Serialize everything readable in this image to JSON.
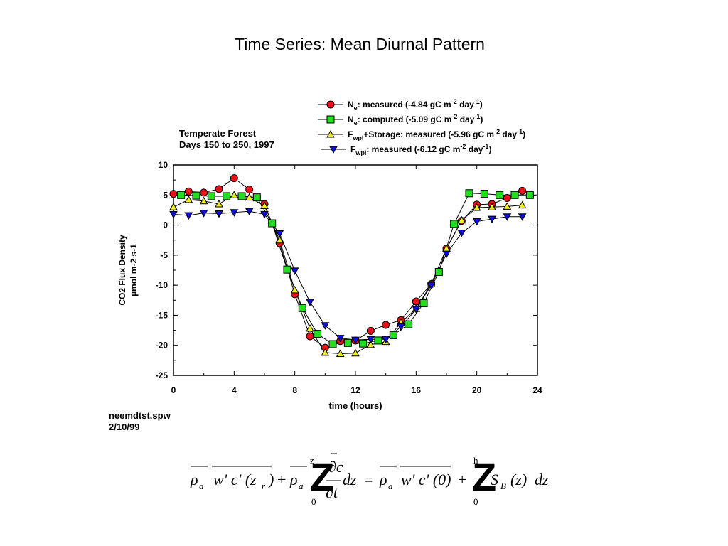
{
  "page": {
    "title": "Time Series: Mean Diurnal Pattern"
  },
  "notes": {
    "site": "Temperate Forest",
    "days": "Days 150 to 250, 1997",
    "file": "neemdtst.spw",
    "date": "2/10/99"
  },
  "chart_data": {
    "type": "line",
    "xlabel": "time (hours)",
    "ylabel_line1": "CO2 Flux Density",
    "ylabel_line2": "µmol m-2 s-1",
    "xlim": [
      0,
      24
    ],
    "ylim": [
      -25,
      10
    ],
    "xticks": [
      0,
      4,
      8,
      12,
      16,
      20,
      24
    ],
    "yticks": [
      10,
      5,
      0,
      -5,
      -10,
      -15,
      -20,
      -25
    ],
    "grid": false,
    "legend_position": "top-right",
    "series": [
      {
        "name": "Ne: measured (-4.84 gC m-2 day-1)",
        "legend": {
          "main": "N",
          "sub": "e",
          "text": ": measured (-4.84 gC m",
          "sup1": "-2",
          "mid": " day",
          "sup2": "-1",
          "end": ")"
        },
        "marker": "circle",
        "color": "#e8101a",
        "x": [
          0,
          1,
          2,
          3,
          4,
          5,
          6,
          7,
          8,
          9,
          10,
          11,
          12,
          13,
          14,
          15,
          16,
          17,
          18,
          19,
          20,
          21,
          22,
          23
        ],
        "y": [
          5.2,
          5.6,
          5.4,
          6.0,
          7.8,
          5.9,
          3.5,
          -3.0,
          -11.5,
          -18.5,
          -20.4,
          -19.3,
          -19.2,
          -17.6,
          -16.6,
          -15.8,
          -12.7,
          -9.8,
          -3.9,
          0.7,
          3.4,
          3.5,
          4.5,
          5.7
        ]
      },
      {
        "name": "Ne: computed (-5.09 gC m-2 day-1)",
        "legend": {
          "main": "N",
          "sub": "e",
          "text": ": computed (-5.09 gC m",
          "sup1": "-2",
          "mid": " day",
          "sup2": "-1",
          "end": ")"
        },
        "marker": "square",
        "color": "#22dd22",
        "x": [
          0.5,
          1.5,
          2.5,
          3.5,
          4.5,
          5.5,
          6.5,
          7.5,
          8.5,
          9.5,
          10.5,
          11.5,
          12.5,
          13.5,
          14.5,
          15.5,
          16.5,
          17.5,
          18.5,
          19.5,
          20.5,
          21.5,
          22.5,
          23.5
        ],
        "y": [
          5.0,
          4.9,
          4.8,
          4.8,
          4.8,
          4.6,
          0.3,
          -7.4,
          -13.8,
          -18.1,
          -19.8,
          -19.6,
          -19.7,
          -19.2,
          -18.3,
          -16.5,
          -13.0,
          -7.8,
          0.2,
          5.3,
          5.2,
          5.0,
          5.0,
          5.0
        ]
      },
      {
        "name": "Fwpl+Storage: measured (-5.96 gC m-2 day-1)",
        "legend": {
          "main": "F",
          "sub": "wpl",
          "text": "+Storage: measured (-5.96 gC m",
          "sup1": "-2",
          "mid": " day",
          "sup2": "-1",
          "end": ")"
        },
        "marker": "triangle-up",
        "color": "#eeee22",
        "x": [
          0,
          1,
          2,
          3,
          4,
          5,
          6,
          7,
          8,
          9,
          10,
          11,
          12,
          13,
          14,
          15,
          16,
          17,
          18,
          19,
          20,
          21,
          22,
          23
        ],
        "y": [
          3.0,
          4.2,
          4.0,
          3.5,
          5.0,
          4.6,
          3.2,
          -2.5,
          -10.8,
          -17.2,
          -21.2,
          -21.4,
          -21.3,
          -19.9,
          -19.4,
          -16.2,
          -13.9,
          -9.8,
          -3.9,
          0.8,
          2.9,
          3.0,
          3.1,
          3.3
        ]
      },
      {
        "name": "Fwpl: measured (-6.12 gC m-2 day-1)",
        "legend": {
          "main": "F",
          "sub": "wpl",
          "text": ": measured (-6.12 gC m",
          "sup1": "-2",
          "mid": " day",
          "sup2": "-1",
          "end": ")"
        },
        "marker": "triangle-down",
        "color": "#1010dd",
        "x": [
          0,
          1,
          2,
          3,
          4,
          5,
          6,
          7,
          8,
          9,
          10,
          11,
          12,
          13,
          14,
          15,
          16,
          17,
          18,
          19,
          20,
          21,
          22,
          23
        ],
        "y": [
          1.8,
          1.6,
          2.0,
          1.9,
          2.1,
          2.3,
          1.8,
          -1.4,
          -7.6,
          -12.8,
          -16.7,
          -18.8,
          -19.1,
          -19.0,
          -19.0,
          -16.9,
          -14.0,
          -10.0,
          -4.8,
          -1.3,
          0.6,
          1.0,
          1.4,
          1.4
        ]
      }
    ]
  },
  "formula": {
    "text": "ρa w'c'(zr) + ρa ∫0^zr ∂c/∂t dz = ρa w'c'(0) + ∫0^h SB(z) dz",
    "rho": "ρ",
    "a": "a",
    "wc": "w' c' (z",
    "r": "r",
    "close": ")",
    "plus": "+",
    "eq": "=",
    "integral": "Z",
    "zero": "0",
    "upper1": "z",
    "upper2": "h",
    "dc": "∂c",
    "dt": "∂t",
    "dz": "dz",
    "wc0": "w' c' (0)",
    "S": "S",
    "B": "B",
    "z": "(z)"
  }
}
